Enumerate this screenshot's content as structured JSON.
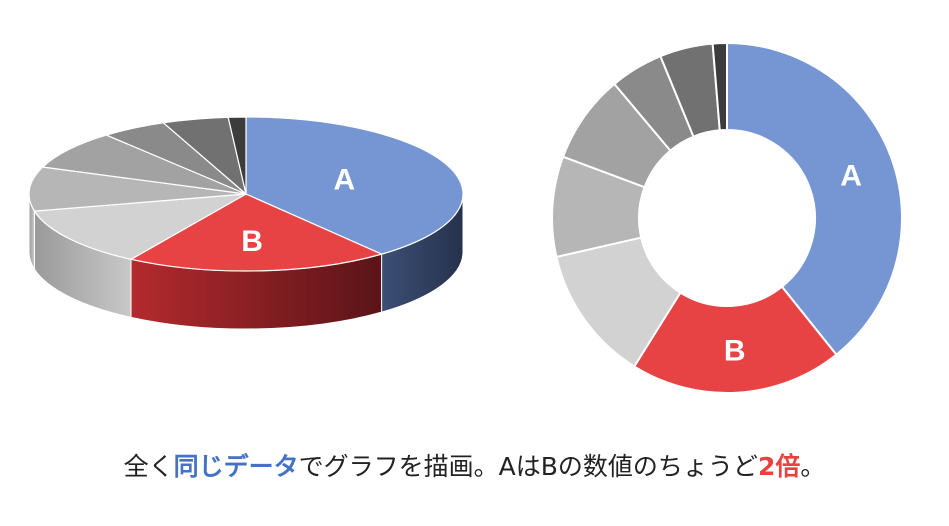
{
  "chart_data": [
    {
      "type": "pie",
      "style": "3d",
      "categories": [
        "A",
        "B",
        "",
        "",
        "",
        "",
        "",
        ""
      ],
      "values": [
        36,
        18,
        11.5,
        8.5,
        7.5,
        4.5,
        4.5,
        1.2
      ],
      "colors": [
        "#7596d2",
        "#e84344",
        "#d2d2d2",
        "#b6b6b6",
        "#a2a2a2",
        "#8a8a8a",
        "#717171",
        "#3c3c3c"
      ],
      "title": "",
      "xlabel": "",
      "ylabel": ""
    },
    {
      "type": "pie",
      "style": "doughnut",
      "categories": [
        "A",
        "B",
        "",
        "",
        "",
        "",
        "",
        ""
      ],
      "values": [
        36,
        18,
        11.5,
        8.5,
        7.5,
        4.5,
        4.5,
        1.2
      ],
      "colors": [
        "#7596d2",
        "#e84344",
        "#d2d2d2",
        "#b6b6b6",
        "#a2a2a2",
        "#8a8a8a",
        "#717171",
        "#3c3c3c"
      ],
      "title": "",
      "xlabel": "",
      "ylabel": ""
    }
  ],
  "caption": {
    "part1": "全く",
    "part2": "同じデータ",
    "part3": "でグラフを描画。AはBの数値のちょうど",
    "part4": "2倍",
    "part5": "。"
  }
}
